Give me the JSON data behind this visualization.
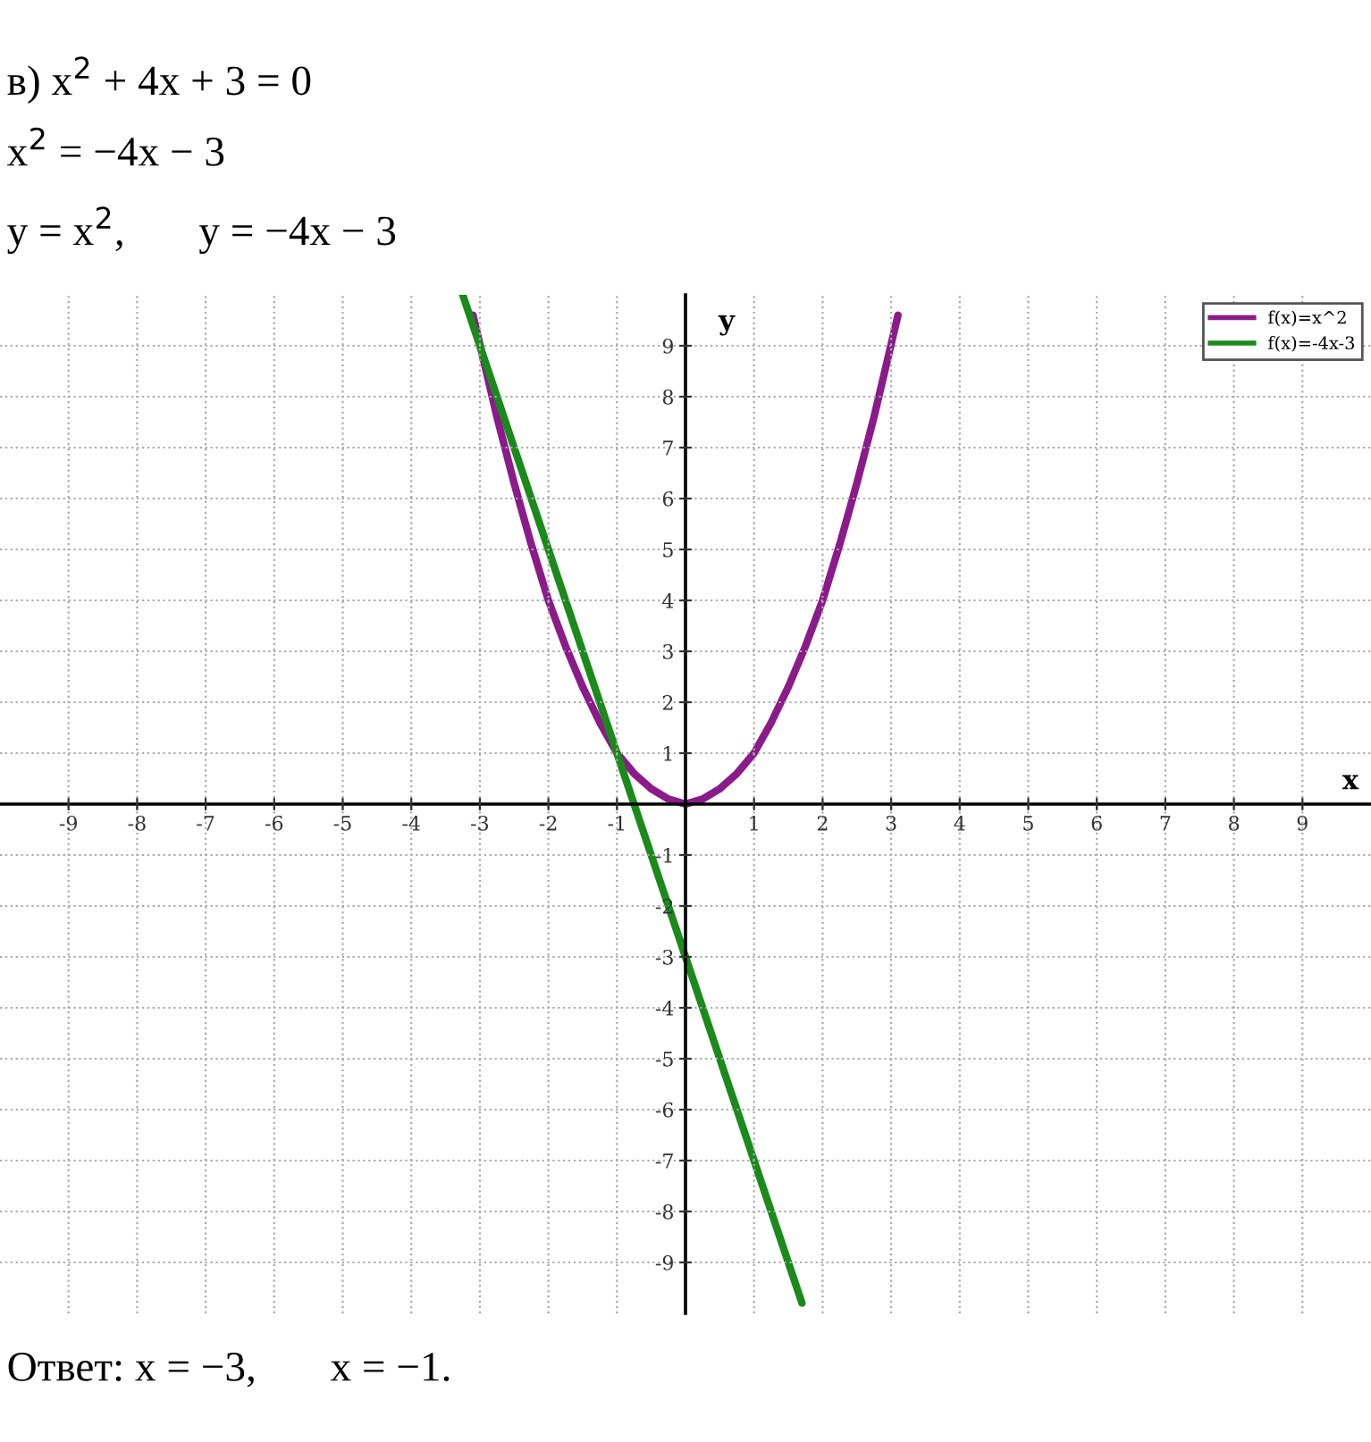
{
  "chart_data": {
    "type": "line",
    "xlabel": "x",
    "ylabel": "y",
    "annotations": [
      "в) x$^{2}$ + 4x + 3 = 0",
      "x$^{2}$ = −4x − 3",
      "y = x$^{2}$,       y = −4x − 3",
      "Ответ: x = −3,       x = −1."
    ],
    "xlim": [
      -10,
      10
    ],
    "ylim": [
      -10,
      10
    ],
    "xticks": [
      -9,
      -8,
      -7,
      -6,
      -5,
      -4,
      -3,
      -2,
      -1,
      1,
      2,
      3,
      4,
      5,
      6,
      7,
      8,
      9
    ],
    "yticks": [
      -9,
      -8,
      -7,
      -6,
      -5,
      -4,
      -3,
      -2,
      -1,
      1,
      2,
      3,
      4,
      5,
      6,
      7,
      8,
      9
    ],
    "grid": true,
    "legend": "top right",
    "marker": "none",
    "line_style": "solid",
    "series": [
      {
        "name": "f(x)=x^2",
        "color": "#8b1a8b",
        "x": [
          -3.1,
          -2.75,
          -2.5,
          -2.25,
          -2,
          -1.75,
          -1.5,
          -1.25,
          -1,
          -0.75,
          -0.5,
          -0.25,
          0,
          0.25,
          0.5,
          0.75,
          1,
          1.25,
          1.5,
          1.75,
          2,
          2.25,
          2.5,
          2.75,
          3.1
        ],
        "values": [
          9.6,
          7.6,
          6.3,
          5.1,
          4,
          3.1,
          2.3,
          1.6,
          1,
          0.6,
          0.3,
          0.1,
          0,
          0.1,
          0.3,
          0.6,
          1,
          1.6,
          2.3,
          3.1,
          4,
          5.1,
          6.3,
          7.6,
          9.6
        ]
      },
      {
        "name": "f(x)=-4x-3",
        "color": "#1a8a1a",
        "x": [
          -3.25,
          1.7
        ],
        "values": [
          10,
          -9.8
        ]
      }
    ]
  }
}
